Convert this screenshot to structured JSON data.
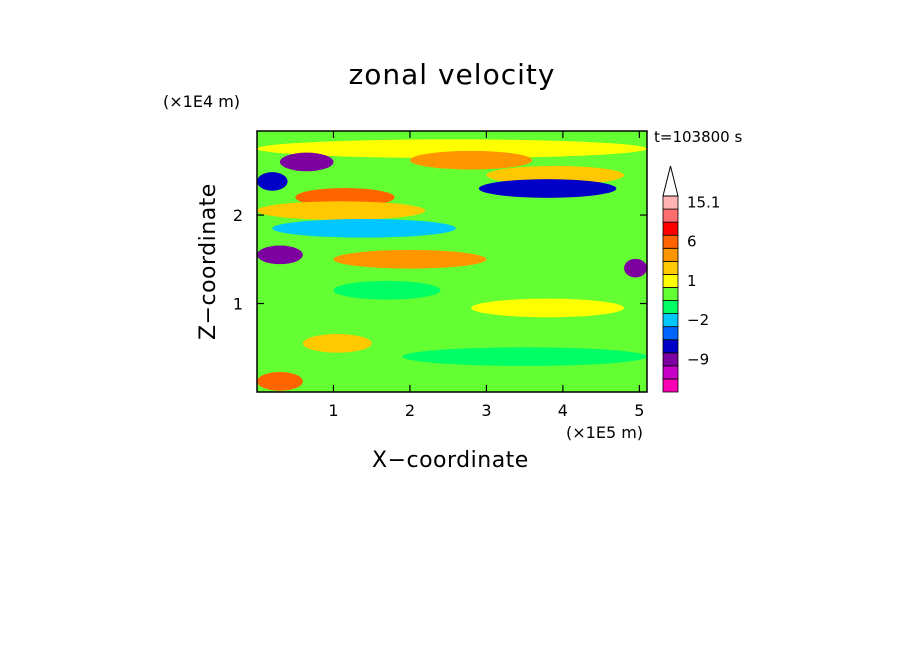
{
  "chart_data": {
    "type": "heatmap",
    "title": "zonal velocity",
    "xlabel": "X−coordinate",
    "ylabel": "Z−coordinate",
    "x_unit": "(×1E5 m)",
    "y_unit": "(×1E4 m)",
    "time_label": "t=103800 s",
    "xlim": [
      0,
      5.1
    ],
    "ylim": [
      0,
      2.95
    ],
    "x_ticks": [
      1,
      2,
      3,
      4,
      5
    ],
    "y_ticks": [
      1,
      2
    ],
    "colorbar": {
      "levels": [
        -15,
        -12,
        -9,
        -6,
        -3,
        -2,
        -1,
        0,
        1,
        2,
        4,
        6,
        9,
        12,
        15.1
      ],
      "colors": [
        "#ff00b4",
        "#c800c8",
        "#7d00a0",
        "#0000c8",
        "#0064ff",
        "#00c8ff",
        "#00ff64",
        "#64ff32",
        "#ffff00",
        "#ffc800",
        "#ff9600",
        "#ff6400",
        "#ff0000",
        "#ff6e6e",
        "#ffb4b4"
      ],
      "tick_labels": [
        "15.1",
        "6",
        "1",
        "−2",
        "−9"
      ],
      "tick_values": [
        15.1,
        6,
        1,
        -2,
        -9
      ],
      "extend": "max"
    },
    "bands": [
      {
        "z": 2.75,
        "x0": 0.0,
        "x1": 5.1,
        "value": 1.5
      },
      {
        "z": 2.6,
        "x0": 0.3,
        "x1": 1.0,
        "value": -9
      },
      {
        "z": 2.62,
        "x0": 2.0,
        "x1": 3.6,
        "value": 4
      },
      {
        "z": 2.45,
        "x0": 3.0,
        "x1": 4.8,
        "value": 2
      },
      {
        "z": 2.38,
        "x0": 0.0,
        "x1": 0.4,
        "value": -6
      },
      {
        "z": 2.3,
        "x0": 2.9,
        "x1": 4.7,
        "value": -6
      },
      {
        "z": 2.2,
        "x0": 0.5,
        "x1": 1.8,
        "value": 6
      },
      {
        "z": 2.05,
        "x0": 0.0,
        "x1": 2.2,
        "value": 2
      },
      {
        "z": 1.85,
        "x0": 0.2,
        "x1": 2.6,
        "value": -1.5
      },
      {
        "z": 1.55,
        "x0": 0.0,
        "x1": 0.6,
        "value": -9
      },
      {
        "z": 1.5,
        "x0": 1.0,
        "x1": 3.0,
        "value": 4
      },
      {
        "z": 1.4,
        "x0": 4.8,
        "x1": 5.1,
        "value": -9
      },
      {
        "z": 1.15,
        "x0": 1.0,
        "x1": 2.4,
        "value": -0.5
      },
      {
        "z": 0.95,
        "x0": 2.8,
        "x1": 4.8,
        "value": 1.5
      },
      {
        "z": 0.55,
        "x0": 0.6,
        "x1": 1.5,
        "value": 2
      },
      {
        "z": 0.4,
        "x0": 1.9,
        "x1": 5.1,
        "value": -0.5
      },
      {
        "z": 0.12,
        "x0": 0.0,
        "x1": 0.6,
        "value": 6
      }
    ]
  }
}
